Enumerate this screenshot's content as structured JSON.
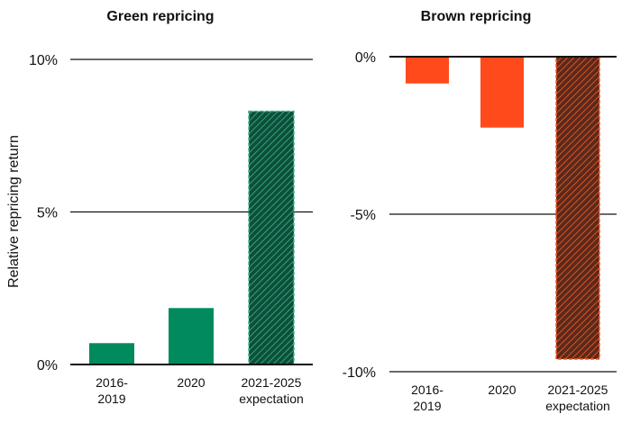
{
  "chart_data": [
    {
      "type": "bar",
      "title": "Green repricing",
      "ylabel": "Relative repricing return",
      "xlabel": "",
      "categories": [
        [
          "2016-",
          "2019"
        ],
        [
          "2020"
        ],
        [
          "2021-2025",
          "expectation"
        ]
      ],
      "values": [
        0.7,
        1.85,
        8.3
      ],
      "ylim": [
        0,
        10
      ],
      "yticks": [
        "0%",
        "5%",
        "10%"
      ],
      "ytick_values": [
        0,
        5,
        10
      ],
      "colors": {
        "bar": "#008a5e",
        "expectation_fill": "#0c4f3a",
        "expectation_hatch": "#3fb58a"
      },
      "grid": true
    },
    {
      "type": "bar",
      "title": "Brown repricing",
      "xlabel": "",
      "categories": [
        [
          "2016-",
          "2019"
        ],
        [
          "2020"
        ],
        [
          "2021-2025",
          "expectation"
        ]
      ],
      "values": [
        -0.85,
        -2.25,
        -9.6
      ],
      "ylim": [
        -10,
        0
      ],
      "yticks": [
        "0%",
        "-5%",
        "-10%"
      ],
      "ytick_values": [
        0,
        -5,
        -10
      ],
      "colors": {
        "bar": "#ff4a1c",
        "expectation_fill": "#5a2a1a",
        "expectation_hatch": "#ff5a2a"
      },
      "grid": true
    }
  ]
}
